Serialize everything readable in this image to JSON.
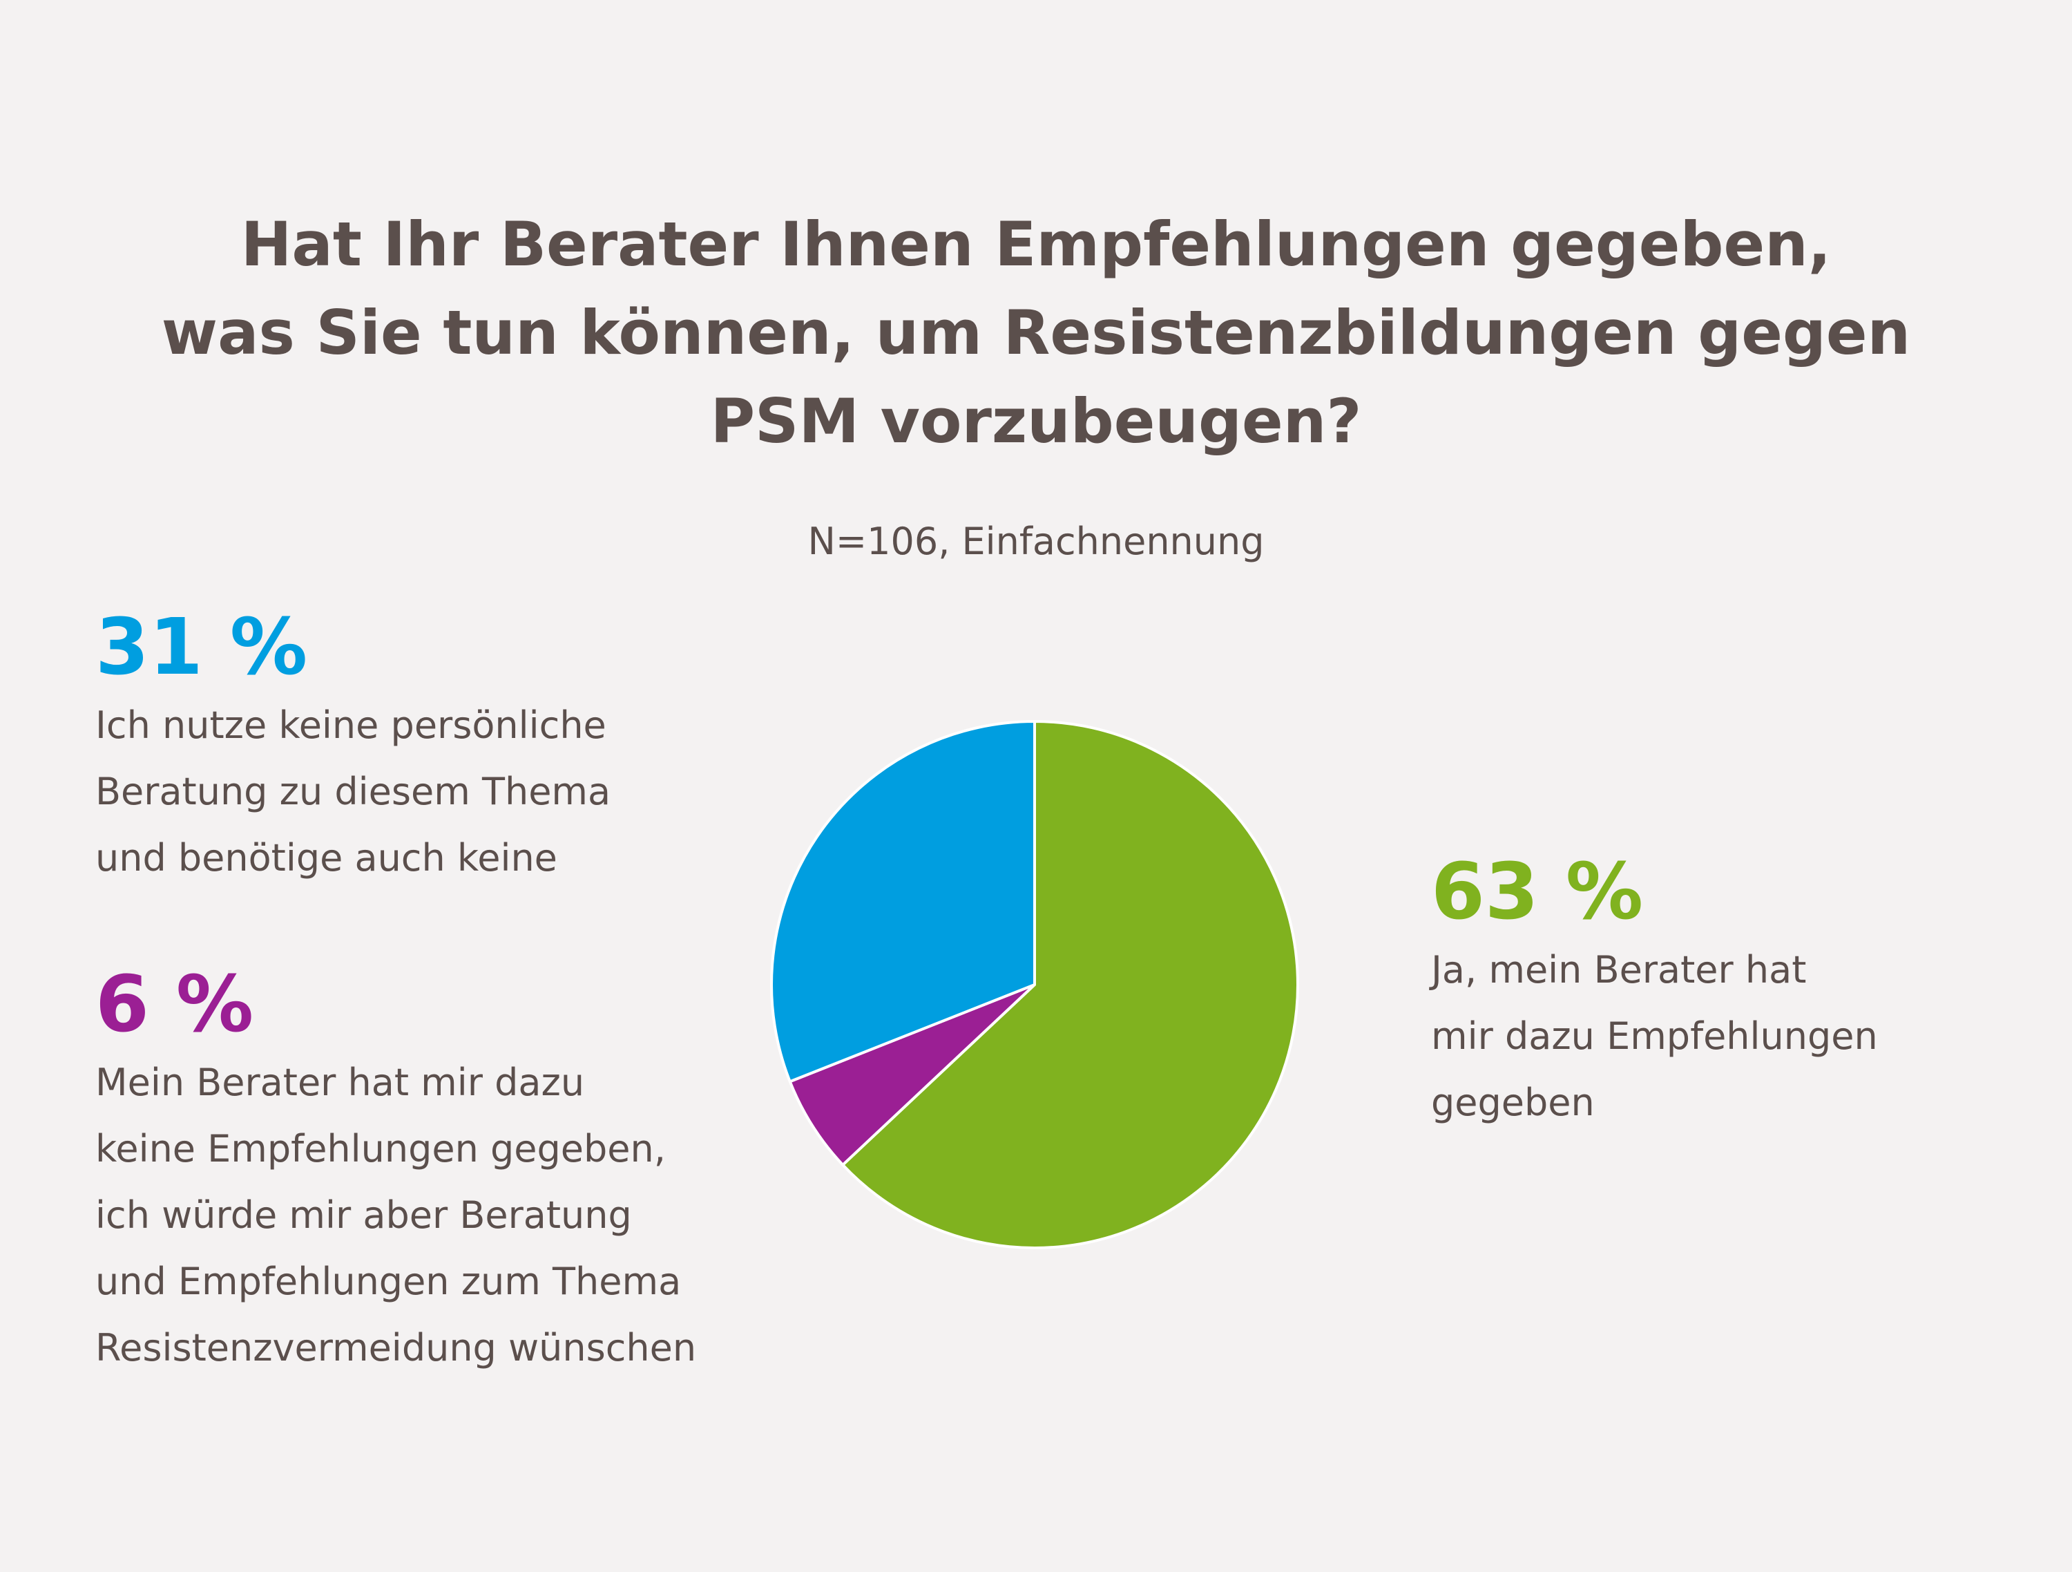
{
  "chart_data": {
    "type": "pie",
    "title": "Hat Ihr Berater Ihnen Empfehlungen gegeben,\nwas Sie tun können, um Resistenzbildungen gegen\nPSM vorzubeugen?",
    "subtitle": "N=106, Einfachnennung",
    "categories": [
      "Ja, mein Berater hat\nmir dazu Empfehlungen\ngegeben",
      "Mein Berater hat mir dazu\nkeine Empfehlungen gegeben,\nich würde mir aber Beratung\nund Empfehlungen zum Thema\nResistenzvermeidung wünschen",
      "Ich nutze keine persönliche\nBeratung zu diesem Thema\nund benötige auch keine"
    ],
    "values": [
      63,
      6,
      31
    ],
    "value_labels": [
      "63 %",
      "6 %",
      "31 %"
    ],
    "colors": [
      "#80b21f",
      "#9b1f94",
      "#009ee0"
    ]
  }
}
